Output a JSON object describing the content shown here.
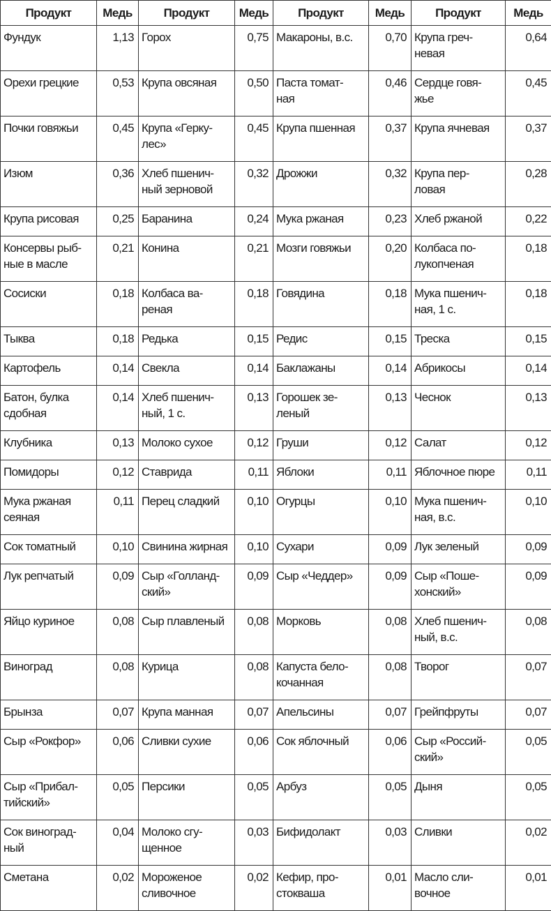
{
  "headers": [
    "Продукт",
    "Медь",
    "Продукт",
    "Медь",
    "Продукт",
    "Медь",
    "Продукт",
    "Медь"
  ],
  "rows": [
    [
      [
        "Фундук",
        "1,13"
      ],
      [
        "Горох",
        "0,75"
      ],
      [
        "Макароны, в.с.",
        "0,70"
      ],
      [
        "Крупа греч-\nневая",
        "0,64"
      ]
    ],
    [
      [
        "Орехи грецкие",
        "0,53"
      ],
      [
        "Крупа овсяная",
        "0,50"
      ],
      [
        "Паста томат-\nная",
        "0,46"
      ],
      [
        "Сердце говя-\nжье",
        "0,45"
      ]
    ],
    [
      [
        "Почки говяжьи",
        "0,45"
      ],
      [
        "Крупа «Герку-\nлес»",
        "0,45"
      ],
      [
        "Крупа пшенная",
        "0,37"
      ],
      [
        "Крупа ячневая",
        "0,37"
      ]
    ],
    [
      [
        "Изюм",
        "0,36"
      ],
      [
        "Хлеб пшенич-\nный зерновой",
        "0,32"
      ],
      [
        "Дрожжи",
        "0,32"
      ],
      [
        "Крупа пер-\nловая",
        "0,28"
      ]
    ],
    [
      [
        "Крупа рисовая",
        "0,25"
      ],
      [
        "Баранина",
        "0,24"
      ],
      [
        "Мука ржаная",
        "0,23"
      ],
      [
        "Хлеб ржаной",
        "0,22"
      ]
    ],
    [
      [
        "Консервы рыб-\nные в масле",
        "0,21"
      ],
      [
        "Конина",
        "0,21"
      ],
      [
        "Мозги говяжьи",
        "0,20"
      ],
      [
        "Колбаса по-\nлукопченая",
        "0,18"
      ]
    ],
    [
      [
        "Сосиски",
        "0,18"
      ],
      [
        "Колбаса ва-\nреная",
        "0,18"
      ],
      [
        "Говядина",
        "0,18"
      ],
      [
        "Мука пшенич-\nная, 1 с.",
        "0,18"
      ]
    ],
    [
      [
        "Тыква",
        "0,18"
      ],
      [
        "Редька",
        "0,15"
      ],
      [
        "Редис",
        "0,15"
      ],
      [
        "Треска",
        "0,15"
      ]
    ],
    [
      [
        "Картофель",
        "0,14"
      ],
      [
        "Свекла",
        "0,14"
      ],
      [
        "Баклажаны",
        "0,14"
      ],
      [
        "Абрикосы",
        "0,14"
      ]
    ],
    [
      [
        "Батон, булка\nсдобная",
        "0,14"
      ],
      [
        "Хлеб пшенич-\nный, 1 с.",
        "0,13"
      ],
      [
        "Горошек зе-\nленый",
        "0,13"
      ],
      [
        "Чеснок",
        "0,13"
      ]
    ],
    [
      [
        "Клубника",
        "0,13"
      ],
      [
        "Молоко сухое",
        "0,12"
      ],
      [
        "Груши",
        "0,12"
      ],
      [
        "Салат",
        "0,12"
      ]
    ],
    [
      [
        "Помидоры",
        "0,12"
      ],
      [
        "Ставрида",
        "0,11"
      ],
      [
        "Яблоки",
        "0,11"
      ],
      [
        "Яблочное пюре",
        "0,11"
      ]
    ],
    [
      [
        "Мука ржаная\nсеяная",
        "0,11"
      ],
      [
        "Перец сладкий",
        "0,10"
      ],
      [
        "Огурцы",
        "0,10"
      ],
      [
        "Мука пшенич-\nная, в.с.",
        "0,10"
      ]
    ],
    [
      [
        "Сок томатный",
        "0,10"
      ],
      [
        "Свинина жирная",
        "0,10"
      ],
      [
        "Сухари",
        "0,09"
      ],
      [
        "Лук зеленый",
        "0,09"
      ]
    ],
    [
      [
        "Лук репчатый",
        "0,09"
      ],
      [
        "Сыр «Голланд-\nский»",
        "0,09"
      ],
      [
        "Сыр «Чеддер»",
        "0,09"
      ],
      [
        "Сыр «Поше-\nхонский»",
        "0,09"
      ]
    ],
    [
      [
        "Яйцо куриное",
        "0,08"
      ],
      [
        "Сыр плавленый",
        "0,08"
      ],
      [
        "Морковь",
        "0,08"
      ],
      [
        "Хлеб пшенич-\nный, в.с.",
        "0,08"
      ]
    ],
    [
      [
        "Виноград",
        "0,08"
      ],
      [
        "Курица",
        "0,08"
      ],
      [
        "Капуста бело-\nкочанная",
        "0,08"
      ],
      [
        "Творог",
        "0,07"
      ]
    ],
    [
      [
        "Брынза",
        "0,07"
      ],
      [
        "Крупа манная",
        "0,07"
      ],
      [
        "Апельсины",
        "0,07"
      ],
      [
        "Грейпфруты",
        "0,07"
      ]
    ],
    [
      [
        "Сыр «Рокфор»",
        "0,06"
      ],
      [
        "Сливки сухие",
        "0,06"
      ],
      [
        "Сок яблочный",
        "0,06"
      ],
      [
        "Сыр «Россий-\nский»",
        "0,05"
      ]
    ],
    [
      [
        "Сыр «Прибал-\nтийский»",
        "0,05"
      ],
      [
        "Персики",
        "0,05"
      ],
      [
        "Арбуз",
        "0,05"
      ],
      [
        "Дыня",
        "0,05"
      ]
    ],
    [
      [
        "Сок виноград-\nный",
        "0,04"
      ],
      [
        "Молоко сгу-\nщенное",
        "0,03"
      ],
      [
        "Бифидолакт",
        "0,03"
      ],
      [
        "Сливки",
        "0,02"
      ]
    ],
    [
      [
        "Сметана",
        "0,02"
      ],
      [
        "Мороженое\nсливочное",
        "0,02"
      ],
      [
        "Кефир, про-\nстокваша",
        "0,01"
      ],
      [
        "Масло сли-\nвочное",
        "0,01"
      ]
    ]
  ]
}
